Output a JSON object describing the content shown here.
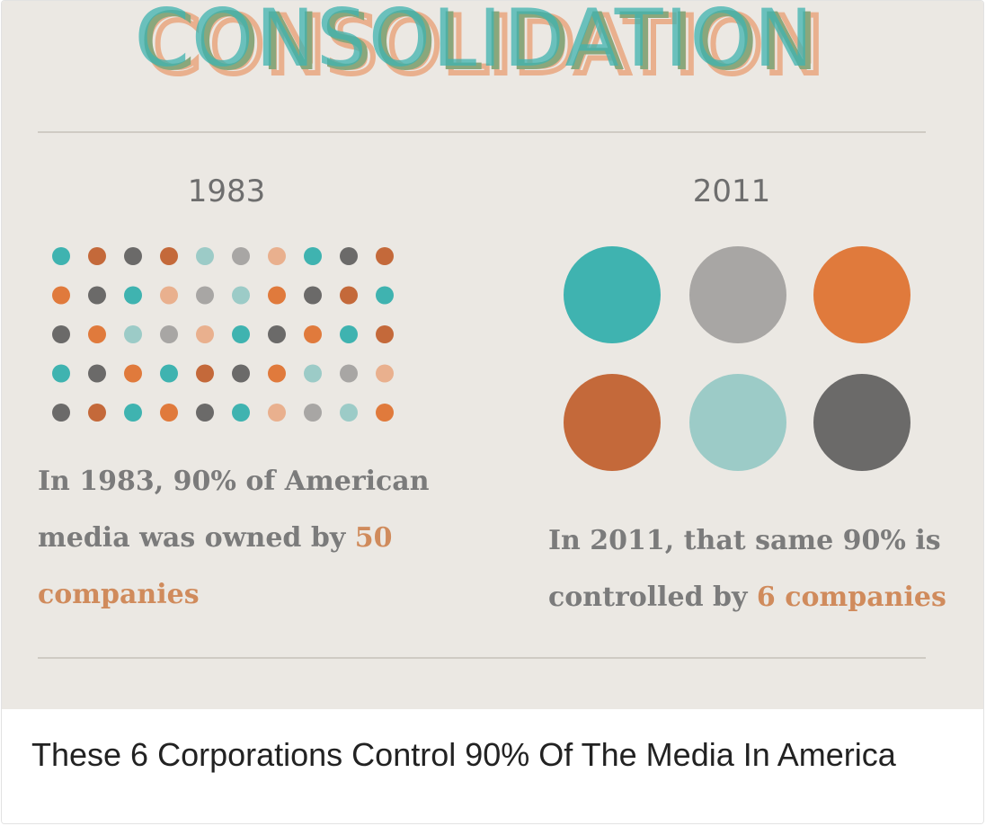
{
  "infographic": {
    "headline": "CONSOLIDATION",
    "year_left": "1983",
    "year_right": "2011",
    "caption_left": {
      "line1": "In 1983, 90% of American",
      "line2_prefix": "media was owned by ",
      "line2_highlight": "50",
      "line3_highlight": "companies"
    },
    "caption_right": {
      "line1": "In 2011, that same 90% is",
      "line2_prefix": "controlled by ",
      "line2_highlight": "6 companies"
    },
    "colors": {
      "teal": "#3fb3b0",
      "gray": "#a8a6a4",
      "orange": "#e07a3c",
      "rust": "#c4693a",
      "light_teal": "#9ccbc7",
      "dark_gray": "#6b6a69",
      "peach": "#e9b08e",
      "highlight": "#d08b5c"
    },
    "small_dot_colors": [
      [
        "teal",
        "rust",
        "dark_gray",
        "rust",
        "light_teal",
        "gray",
        "peach",
        "teal",
        "dark_gray",
        "rust"
      ],
      [
        "orange",
        "dark_gray",
        "teal",
        "peach",
        "gray",
        "light_teal",
        "orange",
        "dark_gray",
        "rust",
        "teal"
      ],
      [
        "dark_gray",
        "orange",
        "light_teal",
        "gray",
        "peach",
        "teal",
        "dark_gray",
        "orange",
        "teal",
        "rust"
      ],
      [
        "teal",
        "dark_gray",
        "orange",
        "teal",
        "rust",
        "dark_gray",
        "orange",
        "light_teal",
        "gray",
        "peach"
      ],
      [
        "dark_gray",
        "rust",
        "teal",
        "orange",
        "dark_gray",
        "teal",
        "peach",
        "gray",
        "light_teal",
        "orange"
      ]
    ],
    "big_dot_colors": [
      [
        "teal",
        "gray",
        "orange"
      ],
      [
        "rust",
        "light_teal",
        "dark_gray"
      ]
    ]
  },
  "title": "These 6 Corporations Control 90% Of The Media In America"
}
